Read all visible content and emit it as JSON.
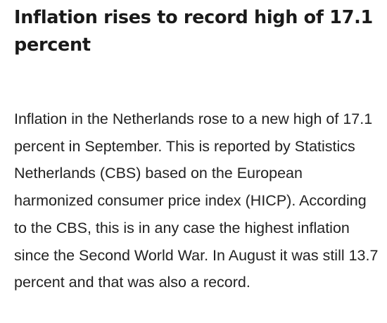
{
  "article": {
    "headline": "Inflation rises to record high of 17.1 percent",
    "body": "Inflation in the Netherlands rose to a new high of 17.1 percent in September. This is reported by Statistics Netherlands (CBS) based on the European harmonized consumer price index (HICP). According to the CBS, this is in any case the highest inflation since the Second World War. In August it was still 13.7 percent and that was also a record."
  },
  "colors": {
    "headline": "#1a1a1a",
    "body": "#222222",
    "background": "#ffffff"
  }
}
